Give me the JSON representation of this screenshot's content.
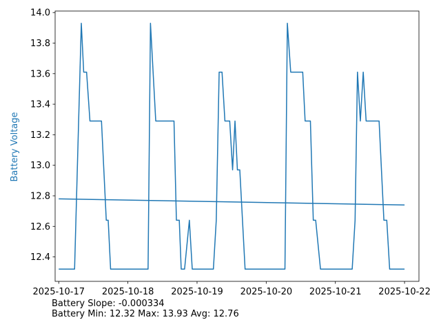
{
  "chart_data": {
    "type": "line",
    "title": "",
    "xlabel": "",
    "ylabel": "Battery Voltage",
    "ylabel_color": "#1f77b4",
    "line_color": "#1f77b4",
    "grid": false,
    "xlim": [
      "2025-10-16T22:45",
      "2025-10-22T05:00"
    ],
    "ylim": [
      12.24,
      14.01
    ],
    "xticks": [
      {
        "label": "2025-10-17",
        "value": "2025-10-17T00:00"
      },
      {
        "label": "2025-10-18",
        "value": "2025-10-18T00:00"
      },
      {
        "label": "2025-10-19",
        "value": "2025-10-19T00:00"
      },
      {
        "label": "2025-10-20",
        "value": "2025-10-20T00:00"
      },
      {
        "label": "2025-10-21",
        "value": "2025-10-21T00:00"
      },
      {
        "label": "2025-10-22",
        "value": "2025-10-22T00:00"
      }
    ],
    "yticks": [
      {
        "label": "12.4",
        "value": 12.4
      },
      {
        "label": "12.6",
        "value": 12.6
      },
      {
        "label": "12.8",
        "value": 12.8
      },
      {
        "label": "13.0",
        "value": 13.0
      },
      {
        "label": "13.2",
        "value": 13.2
      },
      {
        "label": "13.4",
        "value": 13.4
      },
      {
        "label": "13.6",
        "value": 13.6
      },
      {
        "label": "13.8",
        "value": 13.8
      },
      {
        "label": "14.0",
        "value": 14.0
      }
    ],
    "series": [
      {
        "x": [
          "2025-10-17T00:00",
          "2025-10-17T05:30",
          "2025-10-17T07:50",
          "2025-10-17T08:40",
          "2025-10-17T09:40",
          "2025-10-17T10:50",
          "2025-10-17T14:50",
          "2025-10-17T16:30",
          "2025-10-17T17:10",
          "2025-10-17T18:00",
          "2025-10-17T19:00",
          "2025-10-18T07:00",
          "2025-10-18T07:50",
          "2025-10-18T09:40",
          "2025-10-18T16:00",
          "2025-10-18T16:50",
          "2025-10-18T17:50",
          "2025-10-18T18:30",
          "2025-10-18T19:40",
          "2025-10-18T21:20",
          "2025-10-18T22:20",
          "2025-10-19T05:40",
          "2025-10-19T06:40",
          "2025-10-19T07:40",
          "2025-10-19T08:40",
          "2025-10-19T09:40",
          "2025-10-19T11:20",
          "2025-10-19T12:20",
          "2025-10-19T13:10",
          "2025-10-19T14:00",
          "2025-10-19T14:50",
          "2025-10-19T16:40",
          "2025-10-19T17:40",
          "2025-10-20T06:30",
          "2025-10-20T07:20",
          "2025-10-20T08:30",
          "2025-10-20T12:40",
          "2025-10-20T13:30",
          "2025-10-20T15:20",
          "2025-10-20T16:20",
          "2025-10-20T17:10",
          "2025-10-20T18:50",
          "2025-10-21T05:50",
          "2025-10-21T06:50",
          "2025-10-21T07:40",
          "2025-10-21T08:40",
          "2025-10-21T09:40",
          "2025-10-21T10:40",
          "2025-10-21T15:10",
          "2025-10-21T16:50",
          "2025-10-21T17:50",
          "2025-10-21T18:50",
          "2025-10-22T00:00"
        ],
        "values": [
          12.32,
          12.32,
          13.93,
          13.61,
          13.61,
          13.29,
          13.29,
          12.64,
          12.64,
          12.32,
          12.32,
          12.32,
          13.93,
          13.29,
          13.29,
          12.64,
          12.64,
          12.32,
          12.32,
          12.64,
          12.32,
          12.32,
          12.64,
          13.61,
          13.61,
          13.29,
          13.29,
          12.97,
          13.29,
          12.97,
          12.97,
          12.32,
          12.32,
          12.32,
          13.93,
          13.61,
          13.61,
          13.29,
          13.29,
          12.64,
          12.64,
          12.32,
          12.32,
          12.64,
          13.61,
          13.29,
          13.61,
          13.29,
          13.29,
          12.64,
          12.64,
          12.32,
          12.32
        ]
      },
      {
        "x": [
          "2025-10-17T00:00",
          "2025-10-22T00:00"
        ],
        "values": [
          12.78,
          12.74
        ]
      }
    ]
  },
  "notes": {
    "slope": "Battery Slope: -0.000334",
    "stats": "Battery Min: 12.32 Max: 13.93 Avg: 12.76"
  }
}
